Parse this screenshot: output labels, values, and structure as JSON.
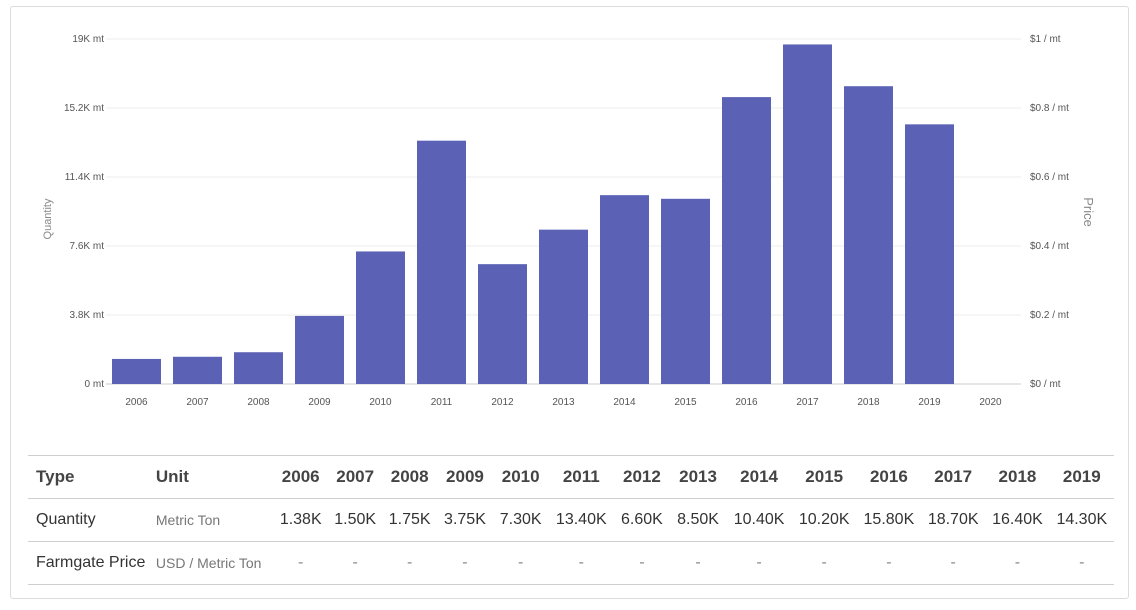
{
  "chart_data": {
    "type": "bar",
    "categories": [
      "2006",
      "2007",
      "2008",
      "2009",
      "2010",
      "2011",
      "2012",
      "2013",
      "2014",
      "2015",
      "2016",
      "2017",
      "2018",
      "2019",
      "2020"
    ],
    "series": [
      {
        "values": [
          1380,
          1500,
          1750,
          3750,
          7300,
          13400,
          6600,
          8500,
          10400,
          10200,
          15800,
          18700,
          16400,
          14300,
          null
        ]
      }
    ],
    "ylabel": "Quantity",
    "y2label": "Price",
    "ylim": [
      0,
      19000
    ],
    "y2lim": [
      0,
      1
    ],
    "yticks": [
      "0 mt",
      "3.8K mt",
      "7.6K mt",
      "11.4K mt",
      "15.2K mt",
      "19K mt"
    ],
    "y2ticks": [
      "$0 / mt",
      "$0.2 / mt",
      "$0.4 / mt",
      "$0.6 / mt",
      "$0.8 / mt",
      "$1 / mt"
    ],
    "bar_color": "#5b61b5",
    "grid": true
  },
  "table": {
    "headers": {
      "type": "Type",
      "unit": "Unit"
    },
    "years": [
      "2006",
      "2007",
      "2008",
      "2009",
      "2010",
      "2011",
      "2012",
      "2013",
      "2014",
      "2015",
      "2016",
      "2017",
      "2018",
      "2019"
    ],
    "rows": [
      {
        "type": "Quantity",
        "unit": "Metric Ton",
        "values": [
          "1.38K",
          "1.50K",
          "1.75K",
          "3.75K",
          "7.30K",
          "13.40K",
          "6.60K",
          "8.50K",
          "10.40K",
          "10.20K",
          "15.80K",
          "18.70K",
          "16.40K",
          "14.30K"
        ]
      },
      {
        "type": "Farmgate Price",
        "unit": "USD / Metric Ton",
        "values": [
          "-",
          "-",
          "-",
          "-",
          "-",
          "-",
          "-",
          "-",
          "-",
          "-",
          "-",
          "-",
          "-",
          "-"
        ]
      }
    ]
  }
}
